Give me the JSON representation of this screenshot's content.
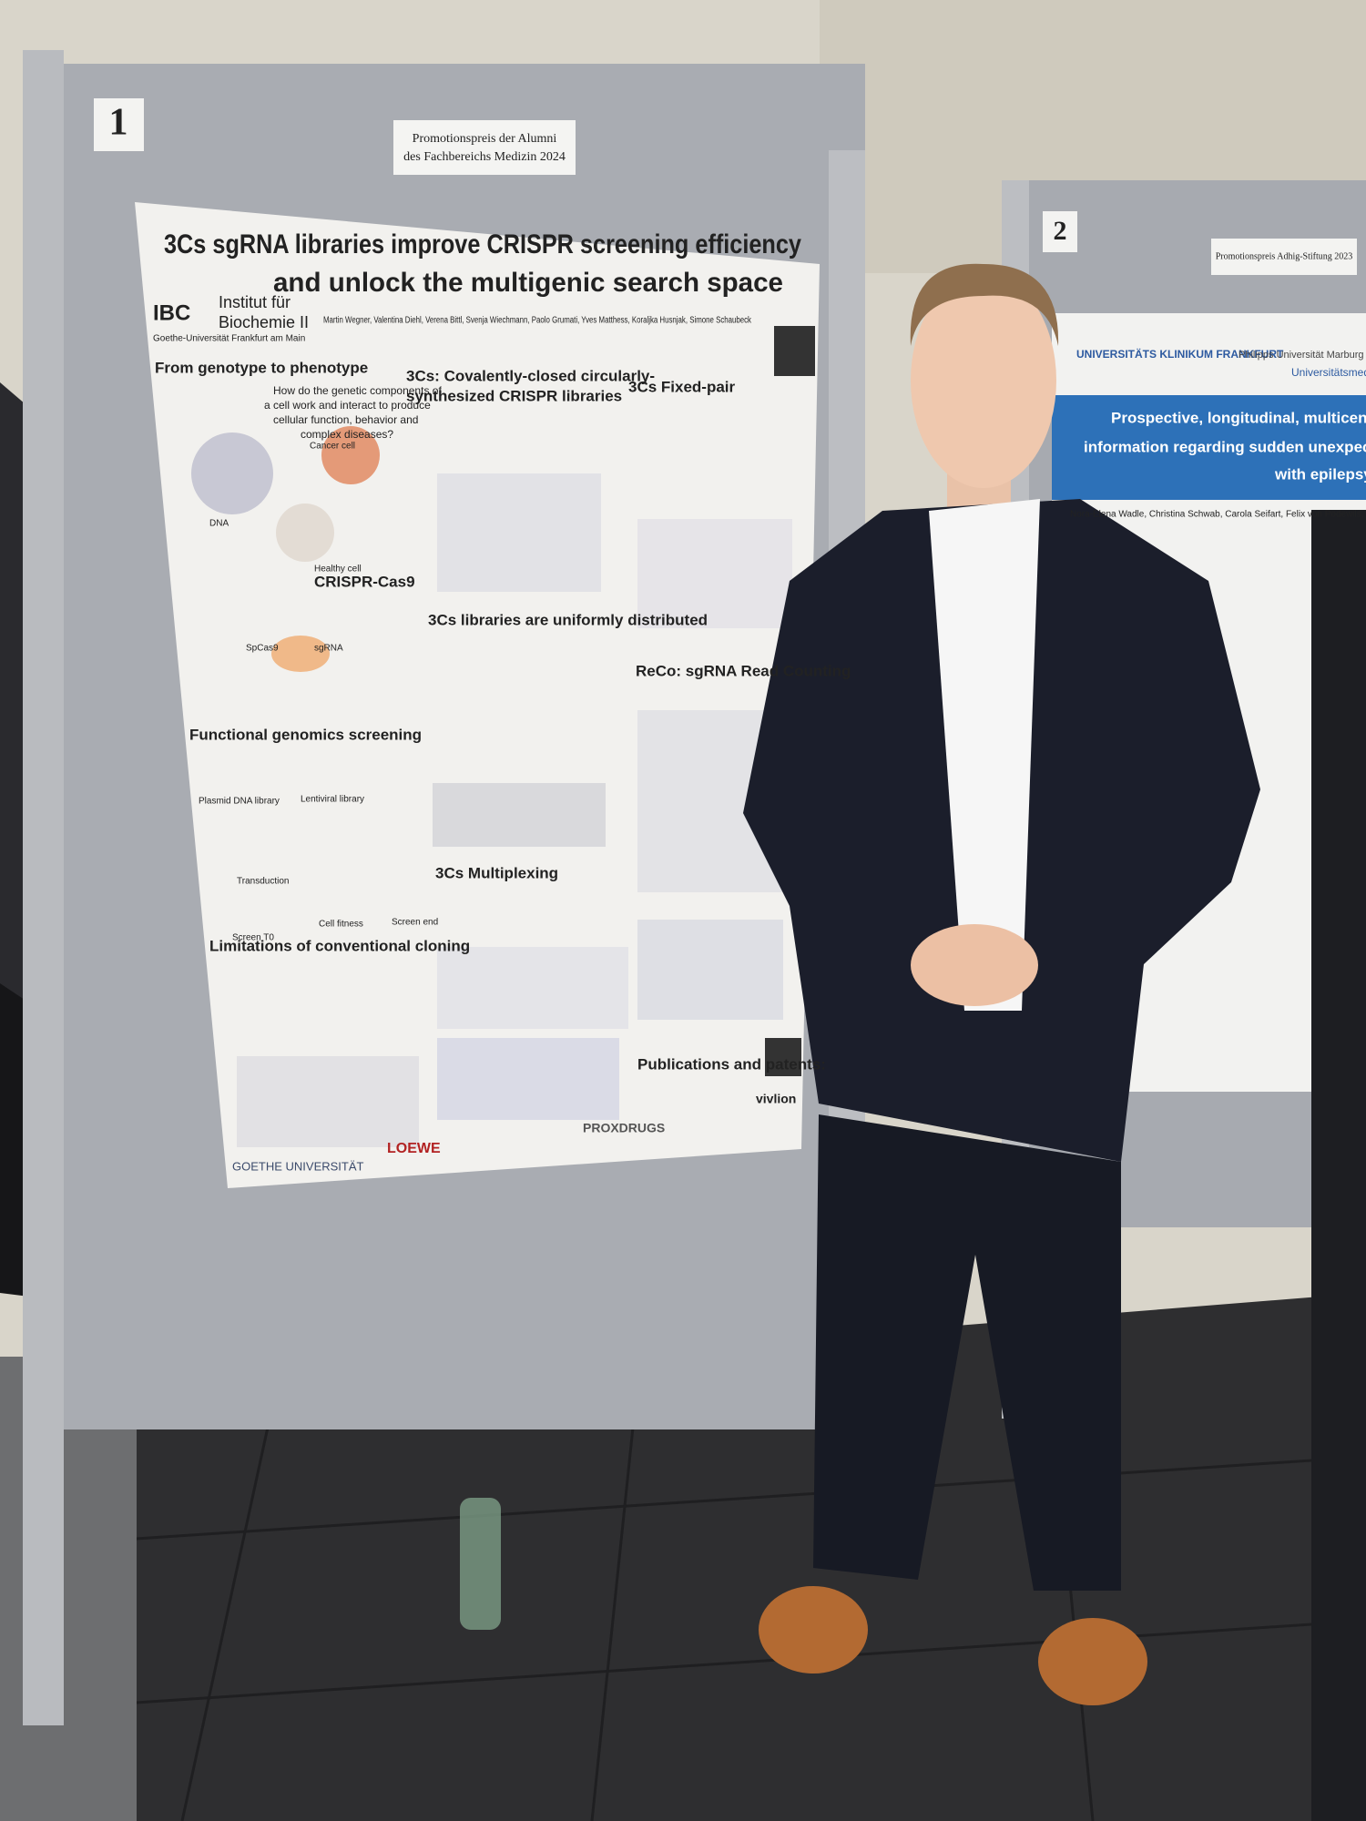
{
  "board_1": {
    "number": "1",
    "label": [
      "Promotionspreis der Alumni",
      "des Fachbereichs Medizin 2024"
    ]
  },
  "poster_1": {
    "title": [
      "3Cs sgRNA libraries improve CRISPR screening efficiency",
      "and unlock the multigenic search space"
    ],
    "institute": [
      "IBC",
      "Institut für",
      "Biochemie II"
    ],
    "university": "Goethe-Universität Frankfurt am Main",
    "authors": "Martin Wegner, Valentina Diehl, Verena Bittl, Svenja Wiechmann, Paolo Grumati, Yves Matthess, Koraljka Husnjak, Simone Schaubeck",
    "sections": [
      "From genotype to phenotype",
      "3Cs: Covalently-closed circularly-",
      "synthesized CRISPR libraries",
      "3Cs Fixed-pair",
      "CRISPR-Cas9",
      "3Cs libraries are uniformly distributed",
      "ReCo: sgRNA Read Counting",
      "Functional genomics screening",
      "3Cs Multiplexing",
      "Limitations of conventional cloning",
      "Publications and patents:"
    ],
    "intro": [
      "How do the genetic components of",
      "a cell work and interact to produce",
      "cellular function, behavior and",
      "complex diseases?"
    ],
    "figure_labels": [
      "Cancer cell",
      "DNA",
      "Healthy cell",
      "SpCas9",
      "sgRNA",
      "Plasmid DNA library",
      "Lentiviral library",
      "Transduction",
      "Screen T0",
      "Cell fitness",
      "Screen end"
    ],
    "logos": [
      "GOETHE UNIVERSITÄT",
      "LOEWE",
      "PROXDRUGS",
      "vivlion"
    ]
  },
  "board_2": {
    "number": "2",
    "label": "Promotionspreis Adhig-Stiftung 2023"
  },
  "poster_2": {
    "logos": [
      "UNIVERSITÄTS KLINIKUM FRANKFURT",
      "Philipps Universität Marburg",
      "Universitätsmedizin"
    ],
    "title": [
      "Prospective, longitudinal, multicenter study on th",
      "information regarding sudden unexpected death in e",
      "with epilepsy"
    ],
    "authors": "Nora-Elena Wadle, Christina Schwab, Carola Seifart, Felix von Podewils, Susanne Kn"
  }
}
